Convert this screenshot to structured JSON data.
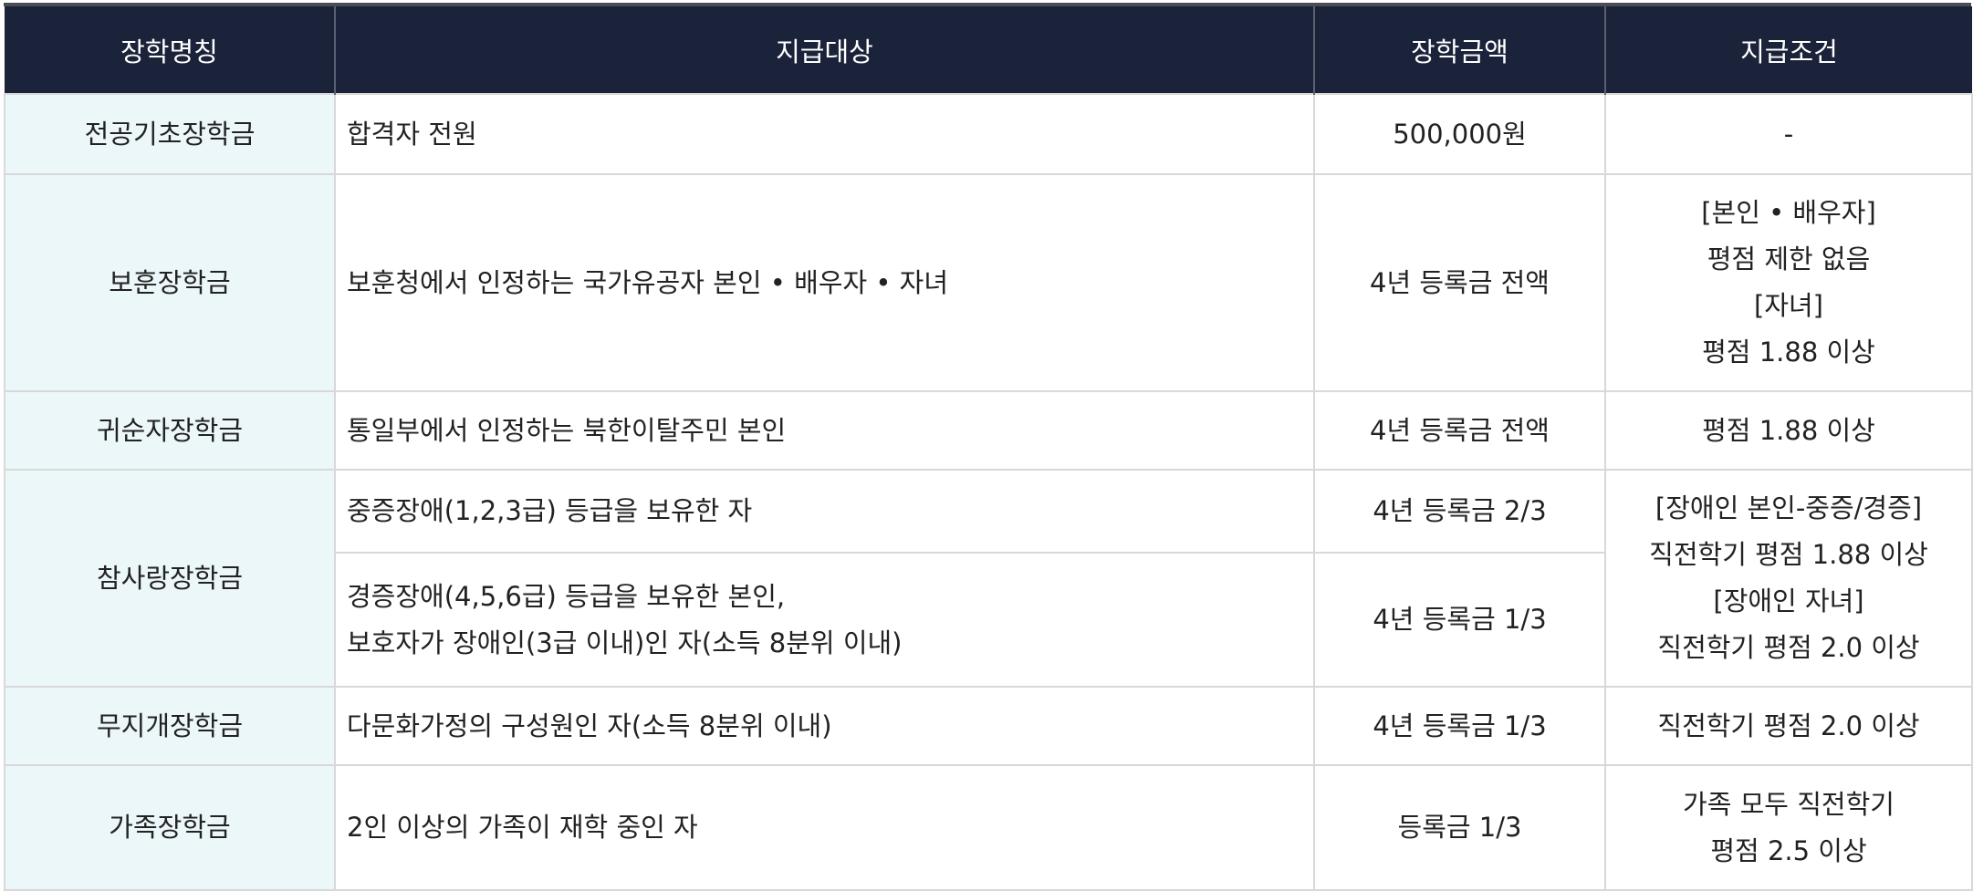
{
  "headers": [
    "장학명칭",
    "지급대상",
    "장학금액",
    "지급조건"
  ],
  "rows": [
    {
      "name": "전공기초장학금",
      "target": [
        "합격자 전원"
      ],
      "amount": "500,000원",
      "condition": [
        "-"
      ]
    },
    {
      "name": "보훈장학금",
      "target": [
        "보훈청에서 인정하는 국가유공자 본인 • 배우자 • 자녀"
      ],
      "amount": "4년 등록금 전액",
      "condition": [
        "[본인 • 배우자]",
        "평점 제한 없음",
        "[자녀]",
        "평점 1.88 이상"
      ]
    },
    {
      "name": "귀순자장학금",
      "target": [
        "통일부에서 인정하는 북한이탈주민 본인"
      ],
      "amount": "4년 등록금 전액",
      "condition": [
        "평점 1.88 이상"
      ]
    },
    {
      "name": "참사랑장학금",
      "sub": [
        {
          "target": [
            "중증장애(1,2,3급) 등급을 보유한 자"
          ],
          "amount": "4년 등록금 2/3"
        },
        {
          "target": [
            "경증장애(4,5,6급) 등급을 보유한 본인,",
            "보호자가 장애인(3급 이내)인 자(소득 8분위 이내)"
          ],
          "amount": "4년 등록금 1/3"
        }
      ],
      "condition": [
        "[장애인 본인-중증/경증]",
        "직전학기 평점 1.88 이상",
        "[장애인 자녀]",
        "직전학기 평점 2.0 이상"
      ]
    },
    {
      "name": "무지개장학금",
      "target": [
        "다문화가정의 구성원인 자(소득 8분위 이내)"
      ],
      "amount": "4년 등록금 1/3",
      "condition": [
        "직전학기 평점 2.0 이상"
      ]
    },
    {
      "name": "가족장학금",
      "target": [
        "2인 이상의 가족이 재학 중인 자"
      ],
      "amount": "등록금 1/3",
      "condition": [
        "가족 모두 직전학기",
        "평점 2.5 이상"
      ]
    }
  ]
}
